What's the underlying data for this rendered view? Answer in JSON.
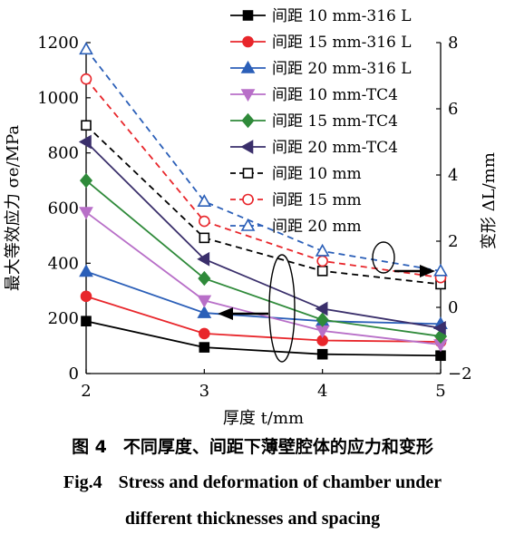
{
  "chart_data": {
    "type": "line",
    "x": [
      2,
      3,
      4,
      5
    ],
    "xlabel": "厚度 t/mm",
    "ylabel_left": "最大等效应力 σe/MPa",
    "ylabel_right": "变形 ΔL/mm",
    "xlim": [
      2,
      5
    ],
    "ylim_left": [
      0,
      1200
    ],
    "ylim_right": [
      -2,
      8
    ],
    "xticks": [
      "2",
      "3",
      "4",
      "5"
    ],
    "yticks_left": [
      "0",
      "200",
      "400",
      "600",
      "800",
      "1000",
      "1200"
    ],
    "yticks_right": [
      "−2",
      "0",
      "2",
      "4",
      "6",
      "8"
    ],
    "grid": false,
    "legend_position": "top-right",
    "series": [
      {
        "name": "间距 10 mm-316 L",
        "axis": "left",
        "color": "#000000",
        "marker": "square",
        "filled": true,
        "dash": false,
        "values": [
          190,
          95,
          70,
          65
        ]
      },
      {
        "name": "间距 15 mm-316 L",
        "axis": "left",
        "color": "#e8262b",
        "marker": "circle",
        "filled": true,
        "dash": false,
        "values": [
          280,
          145,
          120,
          115
        ]
      },
      {
        "name": "间距 20 mm-316 L",
        "axis": "left",
        "color": "#2b5fb8",
        "marker": "triangle",
        "filled": true,
        "dash": false,
        "values": [
          370,
          220,
          190,
          180
        ]
      },
      {
        "name": "间距 10 mm-TC4",
        "axis": "left",
        "color": "#b86fc8",
        "marker": "triangle-down",
        "filled": true,
        "dash": false,
        "values": [
          585,
          265,
          155,
          105
        ]
      },
      {
        "name": "间距 15 mm-TC4",
        "axis": "left",
        "color": "#2f8a3a",
        "marker": "diamond",
        "filled": true,
        "dash": false,
        "values": [
          700,
          345,
          195,
          135
        ]
      },
      {
        "name": "间距 20 mm-TC4",
        "axis": "left",
        "color": "#3a2f6b",
        "marker": "triangle-left",
        "filled": true,
        "dash": false,
        "values": [
          840,
          415,
          235,
          165
        ]
      },
      {
        "name": "间距 10 mm",
        "axis": "right",
        "color": "#000000",
        "marker": "square",
        "filled": false,
        "dash": true,
        "values": [
          5.5,
          2.1,
          1.1,
          0.7
        ]
      },
      {
        "name": "间距 15 mm",
        "axis": "right",
        "color": "#e8262b",
        "marker": "circle",
        "filled": false,
        "dash": true,
        "values": [
          6.9,
          2.6,
          1.4,
          0.9
        ]
      },
      {
        "name": "间距 20 mm",
        "axis": "right",
        "color": "#2b5fb8",
        "marker": "triangle",
        "filled": false,
        "dash": true,
        "values": [
          7.8,
          3.2,
          1.7,
          1.1
        ]
      }
    ]
  },
  "caption": {
    "cn_fig": "图 4",
    "cn_text": "不同厚度、间距下薄壁腔体的应力和变形",
    "en_fig": "Fig.4",
    "en_line1": "Stress and deformation of chamber under",
    "en_line2": "different thicknesses and spacing"
  }
}
